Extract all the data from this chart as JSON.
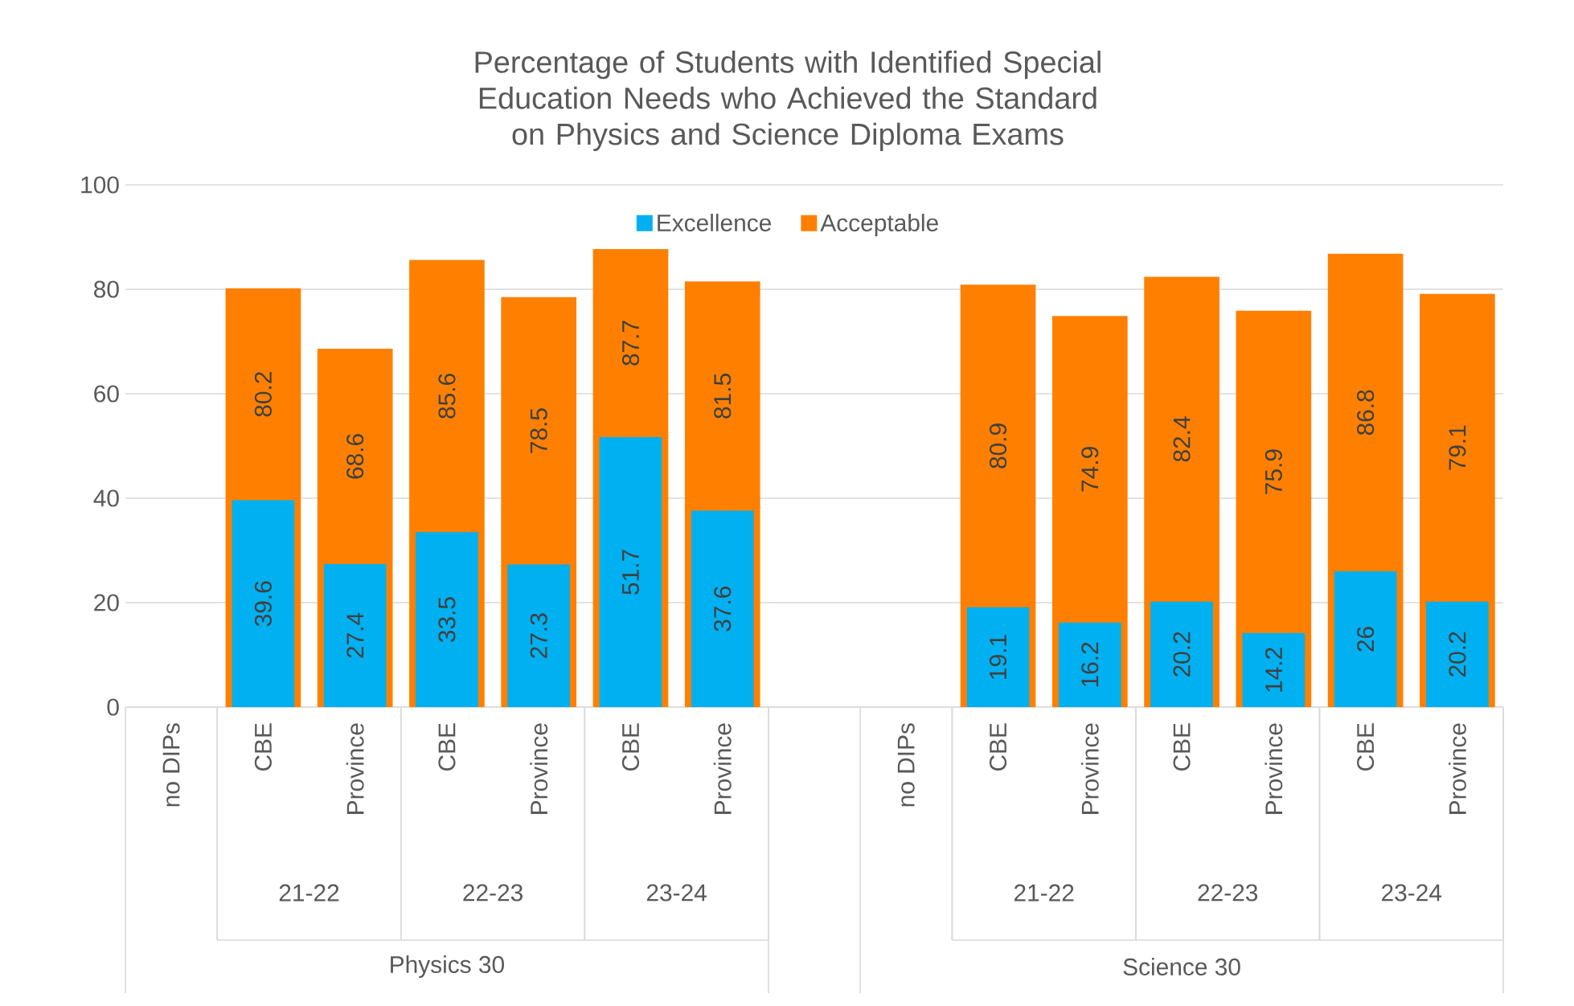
{
  "chart_data": {
    "type": "bar",
    "title": "Percentage of Students with Identified Special Education Needs who Achieved the Standard on Physics and Science Diploma Exams",
    "categories": [
      "no DIPs",
      "CBE",
      "Province",
      "CBE",
      "Province",
      "CBE",
      "Province",
      null,
      "no DIPs",
      "CBE",
      "Province",
      "CBE",
      "Province",
      "CBE",
      "Province"
    ],
    "series": [
      {
        "name": "Excellence",
        "color": "#00b0f0",
        "values": [
          null,
          39.6,
          27.4,
          33.5,
          27.3,
          51.7,
          37.6,
          null,
          null,
          19.1,
          16.2,
          20.2,
          14.2,
          26,
          20.2
        ]
      },
      {
        "name": "Acceptable",
        "color": "#ff8000",
        "values": [
          null,
          80.2,
          68.6,
          85.6,
          78.5,
          87.7,
          81.5,
          null,
          null,
          80.9,
          74.9,
          82.4,
          75.9,
          86.8,
          79.1
        ]
      }
    ],
    "annotations": [
      "21-22",
      "22-23",
      "23-24",
      "21-22",
      "22-23",
      "23-24",
      "Physics 30",
      "Science 30"
    ],
    "ylim": [
      0,
      100
    ],
    "yticks": [
      0,
      20,
      40,
      60,
      80,
      100
    ],
    "grid": "y",
    "legend": "top",
    "data_labels": true
  }
}
